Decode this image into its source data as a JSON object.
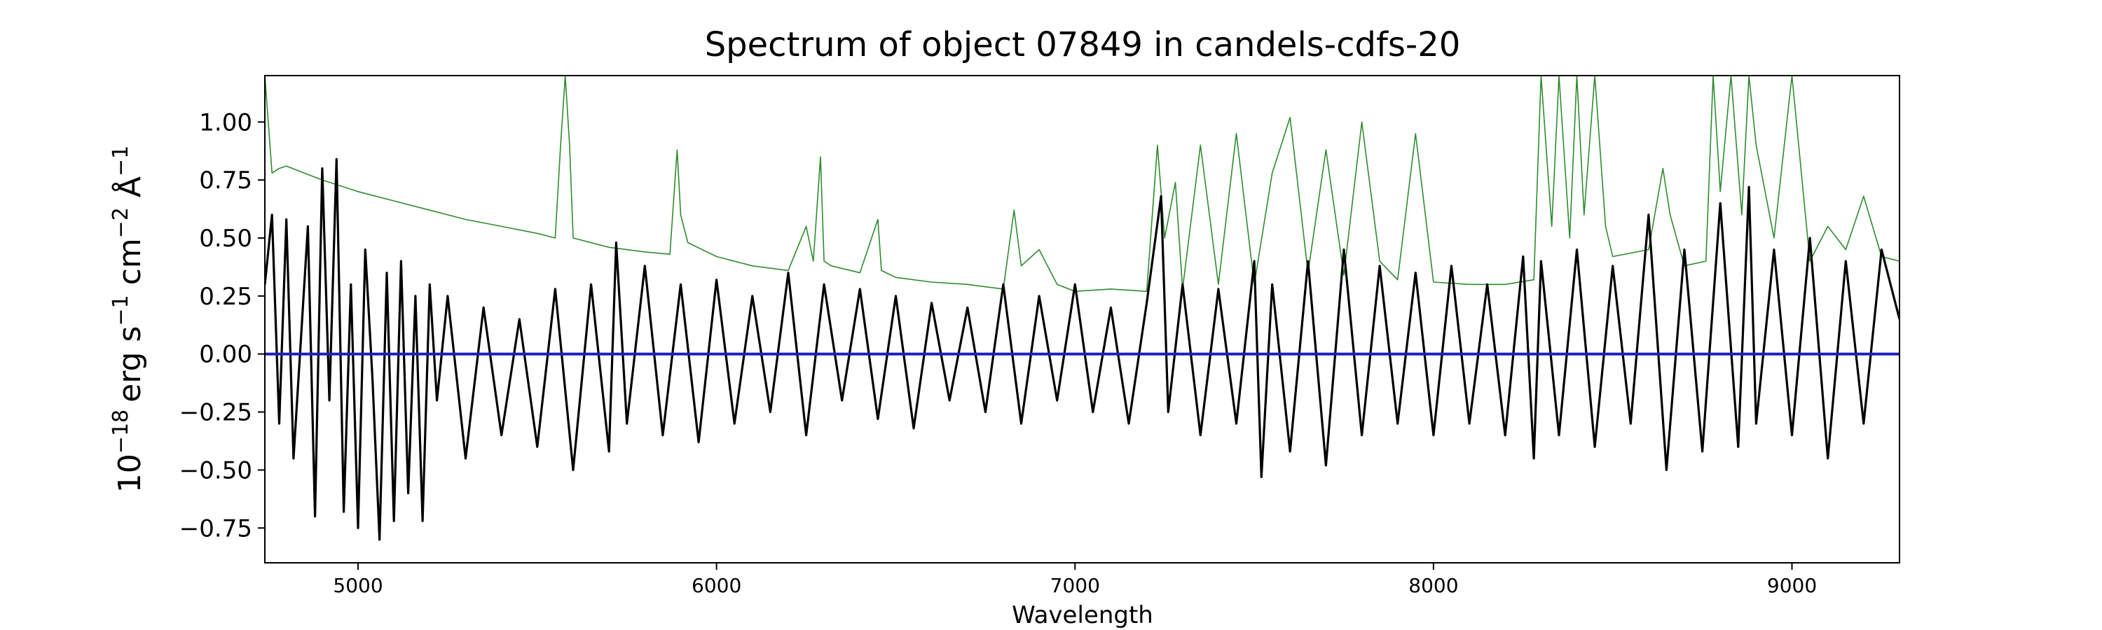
{
  "chart_data": {
    "type": "line",
    "title": "Spectrum of object 07849 in candels-cdfs-20",
    "xlabel": "Wavelength",
    "ylabel_parts": {
      "scale_base": "10",
      "scale_exp": "−18",
      "units": "erg s",
      "units_exp1": "−1",
      "units2": " cm",
      "units_exp2": "−2",
      "units3": " Å",
      "units_exp3": "−1"
    },
    "xlim": [
      4740,
      9300
    ],
    "ylim": [
      -0.9,
      1.2
    ],
    "x_ticks": [
      5000,
      6000,
      7000,
      8000,
      9000
    ],
    "x_tick_labels": [
      "5000",
      "6000",
      "7000",
      "8000",
      "9000"
    ],
    "y_ticks": [
      1.0,
      0.75,
      0.5,
      0.25,
      0.0,
      -0.25,
      -0.5,
      -0.75
    ],
    "y_tick_labels": [
      "1.00",
      "0.75",
      "0.50",
      "0.25",
      "0.00",
      "−0.25",
      "−0.50",
      "−0.75"
    ],
    "grid": false,
    "series": [
      {
        "color": "#2e8b2e",
        "role": "error",
        "x": [
          4740,
          4760,
          4780,
          4800,
          4850,
          4900,
          5000,
          5100,
          5200,
          5300,
          5400,
          5500,
          5550,
          5565,
          5578,
          5590,
          5600,
          5700,
          5800,
          5870,
          5890,
          5900,
          5920,
          6000,
          6100,
          6200,
          6250,
          6270,
          6290,
          6300,
          6320,
          6400,
          6450,
          6460,
          6500,
          6600,
          6700,
          6800,
          6830,
          6850,
          6900,
          6950,
          7000,
          7100,
          7200,
          7230,
          7250,
          7280,
          7300,
          7350,
          7400,
          7450,
          7500,
          7550,
          7600,
          7650,
          7700,
          7750,
          7800,
          7850,
          7900,
          7950,
          8000,
          8100,
          8200,
          8280,
          8300,
          8330,
          8350,
          8380,
          8400,
          8420,
          8450,
          8480,
          8500,
          8600,
          8640,
          8660,
          8700,
          8760,
          8780,
          8800,
          8830,
          8860,
          8880,
          8900,
          8950,
          9000,
          9050,
          9100,
          9150,
          9200,
          9250,
          9300
        ],
        "y": [
          1.2,
          0.78,
          0.8,
          0.81,
          0.78,
          0.75,
          0.7,
          0.66,
          0.62,
          0.58,
          0.55,
          0.52,
          0.5,
          0.9,
          1.2,
          0.9,
          0.5,
          0.46,
          0.44,
          0.43,
          0.88,
          0.6,
          0.48,
          0.42,
          0.38,
          0.36,
          0.55,
          0.4,
          0.85,
          0.4,
          0.38,
          0.35,
          0.58,
          0.36,
          0.33,
          0.31,
          0.3,
          0.28,
          0.62,
          0.38,
          0.45,
          0.3,
          0.27,
          0.28,
          0.27,
          0.9,
          0.5,
          0.74,
          0.28,
          0.9,
          0.3,
          0.95,
          0.3,
          0.78,
          1.02,
          0.35,
          0.88,
          0.34,
          1.0,
          0.4,
          0.32,
          0.95,
          0.31,
          0.3,
          0.3,
          0.32,
          1.2,
          0.55,
          1.2,
          0.5,
          1.2,
          0.6,
          1.2,
          0.55,
          0.42,
          0.45,
          0.8,
          0.6,
          0.38,
          0.4,
          1.2,
          0.7,
          1.2,
          0.6,
          1.2,
          0.9,
          0.5,
          1.2,
          0.4,
          0.55,
          0.45,
          0.68,
          0.42,
          0.4
        ]
      },
      {
        "color": "#000000",
        "role": "flux",
        "x": [
          4740,
          4760,
          4780,
          4800,
          4820,
          4840,
          4860,
          4880,
          4900,
          4920,
          4940,
          4960,
          4980,
          5000,
          5020,
          5040,
          5060,
          5080,
          5100,
          5120,
          5140,
          5160,
          5180,
          5200,
          5220,
          5250,
          5300,
          5350,
          5400,
          5450,
          5500,
          5550,
          5600,
          5650,
          5700,
          5720,
          5750,
          5800,
          5850,
          5900,
          5950,
          6000,
          6050,
          6100,
          6150,
          6200,
          6250,
          6300,
          6350,
          6400,
          6450,
          6500,
          6550,
          6600,
          6650,
          6700,
          6750,
          6800,
          6850,
          6900,
          6950,
          7000,
          7050,
          7100,
          7150,
          7200,
          7240,
          7260,
          7300,
          7350,
          7400,
          7450,
          7500,
          7520,
          7550,
          7600,
          7650,
          7700,
          7750,
          7800,
          7850,
          7900,
          7950,
          8000,
          8050,
          8100,
          8150,
          8200,
          8250,
          8280,
          8300,
          8350,
          8400,
          8450,
          8500,
          8550,
          8600,
          8650,
          8700,
          8750,
          8800,
          8850,
          8880,
          8900,
          8950,
          9000,
          9050,
          9100,
          9150,
          9200,
          9250,
          9300
        ],
        "y": [
          0.3,
          0.6,
          -0.3,
          0.58,
          -0.45,
          0.05,
          0.55,
          -0.7,
          0.8,
          -0.2,
          0.84,
          -0.68,
          0.3,
          -0.75,
          0.45,
          -0.1,
          -0.8,
          0.35,
          -0.72,
          0.4,
          -0.6,
          0.25,
          -0.72,
          0.3,
          -0.2,
          0.25,
          -0.45,
          0.2,
          -0.35,
          0.15,
          -0.4,
          0.28,
          -0.5,
          0.3,
          -0.42,
          0.48,
          -0.3,
          0.38,
          -0.35,
          0.3,
          -0.38,
          0.32,
          -0.3,
          0.25,
          -0.25,
          0.35,
          -0.35,
          0.3,
          -0.2,
          0.28,
          -0.28,
          0.25,
          -0.32,
          0.22,
          -0.2,
          0.2,
          -0.25,
          0.3,
          -0.3,
          0.25,
          -0.2,
          0.3,
          -0.25,
          0.2,
          -0.3,
          0.22,
          0.68,
          -0.25,
          0.3,
          -0.35,
          0.28,
          -0.3,
          0.4,
          -0.53,
          0.3,
          -0.42,
          0.4,
          -0.48,
          0.45,
          -0.35,
          0.38,
          -0.3,
          0.35,
          -0.35,
          0.38,
          -0.3,
          0.3,
          -0.35,
          0.42,
          -0.45,
          0.4,
          -0.35,
          0.45,
          -0.4,
          0.38,
          -0.3,
          0.6,
          -0.5,
          0.45,
          -0.42,
          0.65,
          -0.4,
          0.72,
          -0.3,
          0.45,
          -0.35,
          0.5,
          -0.45,
          0.4,
          -0.3,
          0.45,
          0.15
        ]
      },
      {
        "color": "#1f1fbf",
        "role": "zero",
        "x": [
          4740,
          9300
        ],
        "y": [
          0.0,
          0.0
        ]
      }
    ]
  }
}
